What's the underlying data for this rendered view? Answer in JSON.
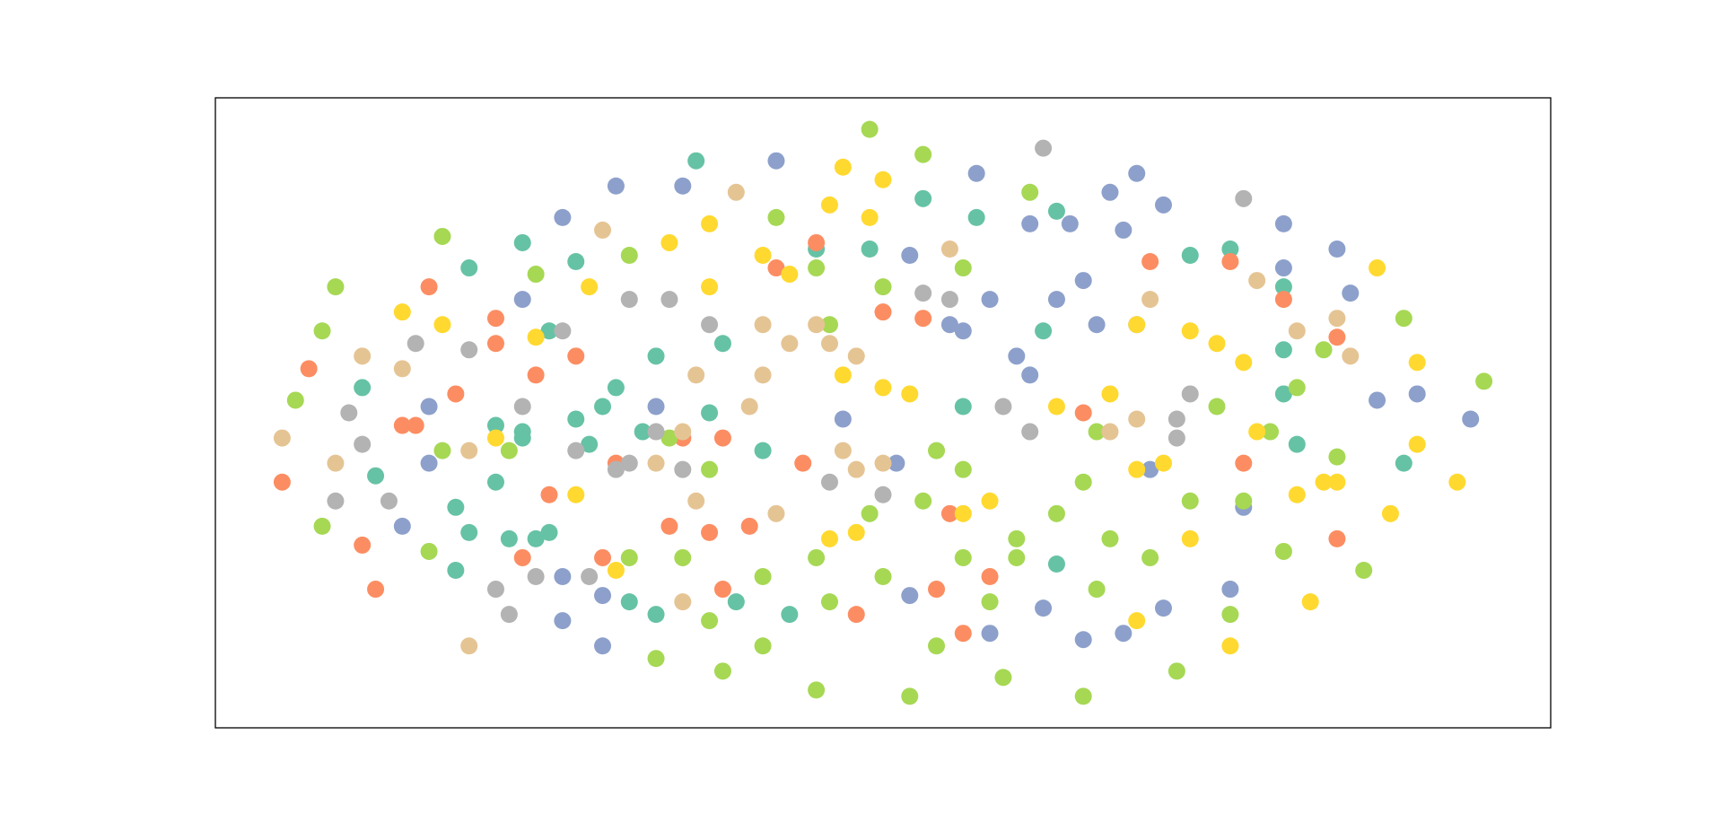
{
  "chart_data": {
    "type": "scatter",
    "xlim": [
      0,
      100
    ],
    "ylim": [
      0,
      100
    ],
    "series": [
      {
        "color": "#66c2a5",
        "x": [
          36,
          23,
          27,
          19,
          25,
          18,
          19,
          18,
          22,
          24,
          25,
          31,
          33,
          39,
          43,
          53,
          57,
          63,
          73,
          76,
          80,
          80,
          81,
          89,
          80,
          63,
          11,
          12,
          21,
          23,
          29,
          32,
          38,
          41,
          45,
          49,
          62,
          56,
          21,
          23,
          27,
          28,
          30,
          33,
          37
        ],
        "values": [
          90,
          77,
          74,
          73,
          63,
          35,
          31,
          25,
          30,
          30,
          31,
          20,
          18,
          20,
          18,
          84,
          81,
          82,
          75,
          76,
          70,
          60,
          45,
          42,
          53,
          26,
          54,
          40,
          39,
          47,
          51,
          47,
          61,
          44,
          76,
          76,
          63,
          51,
          48,
          46,
          49,
          45,
          54,
          59,
          50
        ]
      },
      {
        "color": "#fc8d62",
        "x": [
          7,
          5,
          11,
          12,
          16,
          14,
          15,
          18,
          21,
          21,
          24,
          27,
          23,
          29,
          34,
          37,
          40,
          38,
          44,
          48,
          54,
          56,
          84,
          84,
          80,
          76,
          70,
          65,
          77,
          50,
          53,
          45,
          42,
          25,
          30,
          35,
          38,
          58,
          55
        ],
        "values": [
          57,
          39,
          29,
          22,
          70,
          48,
          48,
          53,
          65,
          61,
          56,
          59,
          27,
          27,
          32,
          31,
          32,
          22,
          42,
          18,
          22,
          15,
          30,
          62,
          68,
          74,
          74,
          50,
          42,
          66,
          65,
          77,
          73,
          37,
          42,
          46,
          46,
          24,
          34
        ]
      },
      {
        "color": "#8da0cb",
        "x": [
          30,
          26,
          35,
          42,
          57,
          69,
          67,
          71,
          80,
          84,
          85,
          80,
          90,
          87,
          94,
          61,
          64,
          68,
          63,
          65,
          66,
          60,
          56,
          58,
          61,
          69,
          55,
          52,
          23,
          16,
          14,
          16,
          26,
          26,
          29,
          29,
          52,
          58,
          65,
          68,
          71,
          76,
          62,
          33,
          47,
          51,
          77,
          70
        ],
        "values": [
          86,
          81,
          86,
          90,
          88,
          88,
          85,
          83,
          80,
          76,
          69,
          73,
          53,
          52,
          49,
          80,
          80,
          79,
          68,
          71,
          64,
          59,
          63,
          68,
          56,
          64,
          64,
          75,
          68,
          51,
          32,
          42,
          24,
          17,
          13,
          21,
          21,
          15,
          14,
          15,
          19,
          22,
          19,
          51,
          49,
          42,
          35,
          41
        ]
      },
      {
        "color": "#a6d854",
        "x": [
          9,
          8,
          6,
          8,
          17,
          16,
          24,
          31,
          42,
          49,
          53,
          61,
          77,
          83,
          89,
          95,
          86,
          84,
          80,
          76,
          72,
          65,
          59,
          52,
          45,
          38,
          33,
          37,
          41,
          46,
          50,
          54,
          58,
          60,
          63,
          65,
          54,
          56,
          53,
          60,
          67,
          73,
          70,
          66,
          56,
          49,
          45,
          41,
          35,
          31,
          22,
          17,
          75,
          81,
          79,
          66,
          46,
          45,
          50,
          56,
          34,
          37
        ],
        "values": [
          70,
          63,
          52,
          32,
          78,
          28,
          72,
          75,
          81,
          95,
          91,
          85,
          36,
          60,
          65,
          55,
          25,
          43,
          28,
          18,
          9,
          5,
          8,
          5,
          6,
          9,
          11,
          17,
          13,
          20,
          24,
          13,
          20,
          27,
          34,
          39,
          44,
          41,
          36,
          30,
          30,
          36,
          27,
          22,
          27,
          34,
          27,
          24,
          27,
          27,
          44,
          44,
          51,
          54,
          47,
          47,
          64,
          73,
          70,
          73,
          46,
          41
        ]
      },
      {
        "color": "#ffd92f",
        "x": [
          47,
          50,
          46,
          49,
          87,
          90,
          90,
          93,
          88,
          82,
          76,
          69,
          14,
          17,
          24,
          28,
          34,
          37,
          41,
          37,
          43,
          47,
          50,
          52,
          56,
          58,
          46,
          48,
          69,
          71,
          73,
          75,
          77,
          83,
          84,
          81,
          69,
          63,
          67,
          30,
          27,
          21,
          73,
          78
        ],
        "values": [
          89,
          87,
          83,
          81,
          73,
          58,
          45,
          39,
          34,
          20,
          13,
          17,
          66,
          64,
          62,
          70,
          77,
          80,
          75,
          70,
          72,
          56,
          54,
          53,
          34,
          36,
          30,
          31,
          41,
          42,
          63,
          61,
          58,
          39,
          39,
          37,
          64,
          51,
          53,
          25,
          37,
          46,
          30,
          47
        ]
      },
      {
        "color": "#e5c494",
        "x": [
          19,
          5,
          9,
          11,
          14,
          29,
          39,
          78,
          84,
          85,
          81,
          55,
          41,
          43,
          45,
          46,
          48,
          47,
          48,
          50,
          40,
          41,
          36,
          35,
          33,
          36,
          42,
          67,
          69,
          70,
          35,
          19
        ],
        "values": [
          13,
          46,
          42,
          59,
          57,
          79,
          85,
          71,
          65,
          59,
          63,
          76,
          64,
          61,
          64,
          61,
          59,
          44,
          41,
          42,
          51,
          56,
          56,
          47,
          42,
          36,
          34,
          47,
          49,
          68,
          20,
          44
        ]
      },
      {
        "color": "#b3b3b3",
        "x": [
          62,
          77,
          15,
          10,
          11,
          9,
          13,
          21,
          22,
          24,
          28,
          19,
          26,
          31,
          34,
          37,
          33,
          31,
          30,
          35,
          46,
          50,
          53,
          55,
          59,
          61,
          72,
          72,
          73,
          23,
          27
        ],
        "values": [
          92,
          84,
          61,
          50,
          45,
          36,
          36,
          22,
          18,
          24,
          24,
          60,
          63,
          68,
          68,
          64,
          47,
          42,
          41,
          41,
          39,
          37,
          69,
          68,
          51,
          47,
          49,
          46,
          53,
          51,
          44
        ]
      }
    ]
  }
}
